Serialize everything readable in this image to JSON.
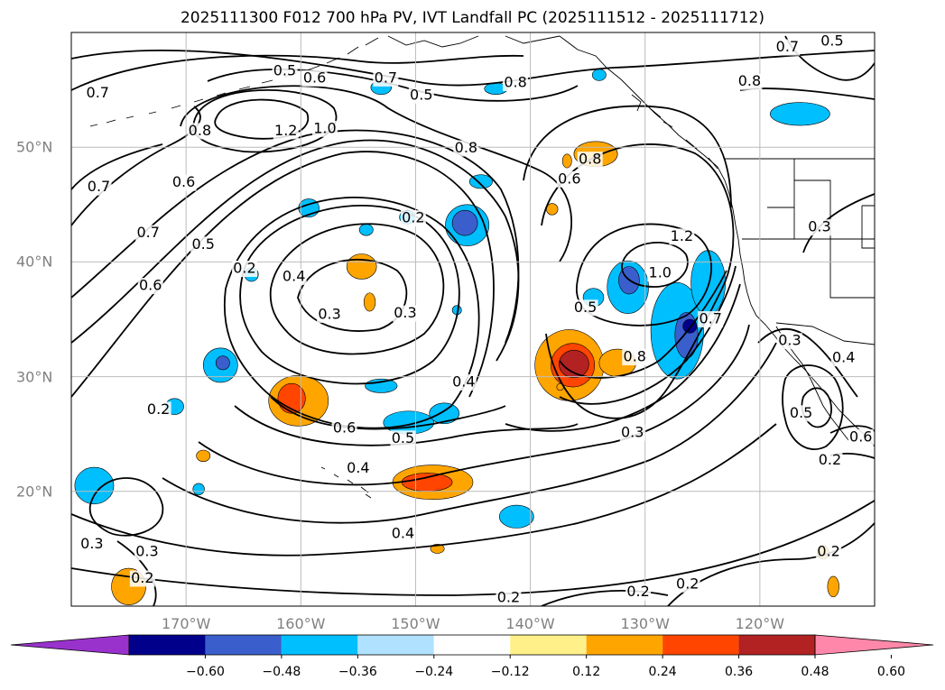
{
  "title": "2025111300 F012 700 hPa PV, IVT Landfall PC (2025111512 - 2025111712)",
  "map": {
    "lon_range": [
      -180,
      -110
    ],
    "lat_range": [
      10,
      60
    ],
    "grid": true,
    "longitude_labels": [
      {
        "lon": -170,
        "label": "170°W"
      },
      {
        "lon": -160,
        "label": "160°W"
      },
      {
        "lon": -150,
        "label": "150°W"
      },
      {
        "lon": -140,
        "label": "140°W"
      },
      {
        "lon": -130,
        "label": "130°W"
      },
      {
        "lon": -120,
        "label": "120°W"
      }
    ],
    "latitude_labels": [
      {
        "lat": 20,
        "label": "20°N"
      },
      {
        "lat": 30,
        "label": "30°N"
      },
      {
        "lat": 40,
        "label": "40°N"
      },
      {
        "lat": 50,
        "label": "50°N"
      }
    ],
    "contour_labels": [
      "0.2",
      "0.3",
      "0.4",
      "0.5",
      "0.6",
      "0.7",
      "0.8",
      "1.0",
      "1.2"
    ],
    "placed_contour_labels": [
      {
        "text": "0.5",
        "lon": -161.4,
        "lat": 56.6
      },
      {
        "text": "0.6",
        "lon": -158.8,
        "lat": 56.0
      },
      {
        "text": "0.7",
        "lon": -152.6,
        "lat": 56.0
      },
      {
        "text": "0.5",
        "lon": -149.5,
        "lat": 54.5
      },
      {
        "text": "0.8",
        "lon": -141.3,
        "lat": 55.6
      },
      {
        "text": "0.8",
        "lon": -120.9,
        "lat": 55.7
      },
      {
        "text": "0.7",
        "lon": -117.6,
        "lat": 58.7
      },
      {
        "text": "0.5",
        "lon": -113.7,
        "lat": 59.2
      },
      {
        "text": "0.7",
        "lon": -177.7,
        "lat": 54.7
      },
      {
        "text": "1.2",
        "lon": -161.3,
        "lat": 51.4
      },
      {
        "text": "1.0",
        "lon": -157.9,
        "lat": 51.6
      },
      {
        "text": "0.8",
        "lon": -168.8,
        "lat": 51.4
      },
      {
        "text": "0.8",
        "lon": -145.6,
        "lat": 49.9
      },
      {
        "text": "0.6",
        "lon": -170.2,
        "lat": 46.9
      },
      {
        "text": "0.7",
        "lon": -177.6,
        "lat": 46.5
      },
      {
        "text": "0.7",
        "lon": -173.3,
        "lat": 42.5
      },
      {
        "text": "0.5",
        "lon": -168.5,
        "lat": 41.5
      },
      {
        "text": "0.6",
        "lon": -173.1,
        "lat": 37.9
      },
      {
        "text": "0.2",
        "lon": -150.2,
        "lat": 43.8
      },
      {
        "text": "0.2",
        "lon": -164.9,
        "lat": 39.4
      },
      {
        "text": "0.4",
        "lon": -160.6,
        "lat": 38.7
      },
      {
        "text": "0.3",
        "lon": -157.5,
        "lat": 35.4
      },
      {
        "text": "0.3",
        "lon": -150.9,
        "lat": 35.5
      },
      {
        "text": "0.4",
        "lon": -145.8,
        "lat": 29.5
      },
      {
        "text": "0.6",
        "lon": -136.6,
        "lat": 47.2
      },
      {
        "text": "0.8",
        "lon": -134.8,
        "lat": 48.9
      },
      {
        "text": "1.2",
        "lon": -126.8,
        "lat": 42.2
      },
      {
        "text": "1.0",
        "lon": -128.7,
        "lat": 39.0
      },
      {
        "text": "0.5",
        "lon": -135.2,
        "lat": 36.0
      },
      {
        "text": "0.8",
        "lon": -130.9,
        "lat": 31.7
      },
      {
        "text": "0.7",
        "lon": -124.3,
        "lat": 35.0
      },
      {
        "text": "0.3",
        "lon": -131.1,
        "lat": 25.1
      },
      {
        "text": "0.3",
        "lon": -114.8,
        "lat": 43.0
      },
      {
        "text": "0.3",
        "lon": -117.4,
        "lat": 33.1
      },
      {
        "text": "0.4",
        "lon": -112.7,
        "lat": 31.6
      },
      {
        "text": "0.5",
        "lon": -116.4,
        "lat": 26.8
      },
      {
        "text": "0.6",
        "lon": -111.2,
        "lat": 24.7
      },
      {
        "text": "0.2",
        "lon": -113.9,
        "lat": 22.7
      },
      {
        "text": "0.2",
        "lon": -172.4,
        "lat": 27.1
      },
      {
        "text": "0.6",
        "lon": -156.2,
        "lat": 25.5
      },
      {
        "text": "0.5",
        "lon": -151.1,
        "lat": 24.6
      },
      {
        "text": "0.4",
        "lon": -155.0,
        "lat": 22.0
      },
      {
        "text": "0.4",
        "lon": -151.1,
        "lat": 16.3
      },
      {
        "text": "0.3",
        "lon": -178.2,
        "lat": 15.4
      },
      {
        "text": "0.3",
        "lon": -173.4,
        "lat": 14.7
      },
      {
        "text": "0.2",
        "lon": -173.8,
        "lat": 12.4
      },
      {
        "text": "0.2",
        "lon": -141.9,
        "lat": 10.7
      },
      {
        "text": "0.2",
        "lon": -130.6,
        "lat": 11.2
      },
      {
        "text": "0.2",
        "lon": -126.3,
        "lat": 11.9
      },
      {
        "text": "0.2",
        "lon": -114.0,
        "lat": 14.7
      }
    ],
    "pv_contour_color": "#000000",
    "coastline_color": "#000000",
    "gridline_color": "#bbbbbb",
    "shaded_regions": [
      {
        "level": "neg1",
        "cx": -178.0,
        "cy": 20.5,
        "rx": 1.7,
        "ry": 1.6
      },
      {
        "level": "neg1",
        "cx": -168.9,
        "cy": 20.2,
        "rx": 0.5,
        "ry": 0.5
      },
      {
        "level": "neg1",
        "cx": -167.0,
        "cy": 31.0,
        "rx": 1.5,
        "ry": 1.5
      },
      {
        "level": "neg2",
        "cx": -166.8,
        "cy": 31.2,
        "rx": 0.6,
        "ry": 0.6
      },
      {
        "level": "neg1",
        "cx": -171.0,
        "cy": 27.4,
        "rx": 0.8,
        "ry": 0.7
      },
      {
        "level": "neg1",
        "cx": -164.3,
        "cy": 38.9,
        "rx": 0.6,
        "ry": 0.6
      },
      {
        "level": "neg1",
        "cx": -159.3,
        "cy": 44.7,
        "rx": 0.9,
        "ry": 0.8
      },
      {
        "level": "neg1",
        "cx": -144.3,
        "cy": 47.0,
        "rx": 1.0,
        "ry": 0.6
      },
      {
        "level": "neg1",
        "cx": -154.3,
        "cy": 42.8,
        "rx": 0.6,
        "ry": 0.5
      },
      {
        "level": "neg1",
        "cx": -150.7,
        "cy": 43.9,
        "rx": 0.7,
        "ry": 0.6
      },
      {
        "level": "neg1",
        "cx": -145.5,
        "cy": 43.2,
        "rx": 1.9,
        "ry": 1.8
      },
      {
        "level": "neg2",
        "cx": -145.7,
        "cy": 43.4,
        "rx": 1.1,
        "ry": 1.1
      },
      {
        "level": "neg1",
        "cx": -141.2,
        "cy": 17.8,
        "rx": 1.5,
        "ry": 1.0
      },
      {
        "level": "neg1",
        "cx": -146.4,
        "cy": 35.8,
        "rx": 0.4,
        "ry": 0.4
      },
      {
        "level": "neg1",
        "cx": -150.6,
        "cy": 26.0,
        "rx": 2.2,
        "ry": 1.0
      },
      {
        "level": "neg1",
        "cx": -147.5,
        "cy": 26.8,
        "rx": 1.3,
        "ry": 0.9
      },
      {
        "level": "neg1",
        "cx": -153.0,
        "cy": 29.2,
        "rx": 1.4,
        "ry": 0.6
      },
      {
        "level": "neg1",
        "cx": -127.2,
        "cy": 34.0,
        "rx": 2.3,
        "ry": 4.2
      },
      {
        "level": "neg1",
        "cx": -124.5,
        "cy": 38.2,
        "rx": 1.5,
        "ry": 2.8
      },
      {
        "level": "neg2",
        "cx": -126.4,
        "cy": 33.6,
        "rx": 1.0,
        "ry": 2.0
      },
      {
        "level": "neg3",
        "cx": -126.1,
        "cy": 34.4,
        "rx": 0.6,
        "ry": 0.6
      },
      {
        "level": "neg1",
        "cx": -131.5,
        "cy": 37.8,
        "rx": 1.8,
        "ry": 2.3
      },
      {
        "level": "neg2",
        "cx": -131.4,
        "cy": 38.4,
        "rx": 0.9,
        "ry": 1.2
      },
      {
        "level": "neg1",
        "cx": -134.5,
        "cy": 36.9,
        "rx": 0.9,
        "ry": 0.8
      },
      {
        "level": "neg1",
        "cx": -116.5,
        "cy": 52.9,
        "rx": 2.6,
        "ry": 1.0
      },
      {
        "level": "neg1",
        "cx": -143.0,
        "cy": 55.1,
        "rx": 1.0,
        "ry": 0.5
      },
      {
        "level": "neg1",
        "cx": -134.0,
        "cy": 56.3,
        "rx": 0.6,
        "ry": 0.5
      },
      {
        "level": "neg1",
        "cx": -153.0,
        "cy": 55.2,
        "rx": 0.9,
        "ry": 0.6
      },
      {
        "level": "pos1",
        "cx": -160.2,
        "cy": 27.9,
        "rx": 2.6,
        "ry": 2.2
      },
      {
        "level": "pos2",
        "cx": -160.8,
        "cy": 28.1,
        "rx": 1.2,
        "ry": 1.3
      },
      {
        "level": "pos1",
        "cx": -148.5,
        "cy": 20.8,
        "rx": 3.5,
        "ry": 1.5
      },
      {
        "level": "pos2",
        "cx": -149.0,
        "cy": 20.8,
        "rx": 2.2,
        "ry": 0.8
      },
      {
        "level": "pos1",
        "cx": -136.6,
        "cy": 31.0,
        "rx": 3.0,
        "ry": 3.1
      },
      {
        "level": "pos2",
        "cx": -136.3,
        "cy": 31.0,
        "rx": 1.9,
        "ry": 1.9
      },
      {
        "level": "pos3",
        "cx": -136.2,
        "cy": 31.1,
        "rx": 1.3,
        "ry": 1.2
      },
      {
        "level": "pos1",
        "cx": -132.4,
        "cy": 31.2,
        "rx": 1.6,
        "ry": 1.2
      },
      {
        "level": "pos1",
        "cx": -154.7,
        "cy": 39.6,
        "rx": 1.3,
        "ry": 1.1
      },
      {
        "level": "pos1",
        "cx": -154.0,
        "cy": 36.5,
        "rx": 0.5,
        "ry": 0.8
      },
      {
        "level": "pos1",
        "cx": -134.3,
        "cy": 49.4,
        "rx": 1.9,
        "ry": 1.1
      },
      {
        "level": "pos1",
        "cx": -136.8,
        "cy": 48.8,
        "rx": 0.4,
        "ry": 0.6
      },
      {
        "level": "pos1",
        "cx": -138.1,
        "cy": 44.6,
        "rx": 0.5,
        "ry": 0.5
      },
      {
        "level": "pos1",
        "cx": -175.0,
        "cy": 11.7,
        "rx": 1.5,
        "ry": 1.6
      },
      {
        "level": "pos1",
        "cx": -168.5,
        "cy": 23.1,
        "rx": 0.6,
        "ry": 0.5
      },
      {
        "level": "pos1",
        "cx": -148.1,
        "cy": 15.0,
        "rx": 0.6,
        "ry": 0.4
      },
      {
        "level": "pos1",
        "cx": -137.4,
        "cy": 29.1,
        "rx": 0.3,
        "ry": 0.3
      },
      {
        "level": "pos1",
        "cx": -113.6,
        "cy": 11.7,
        "rx": 0.5,
        "ry": 0.9
      },
      {
        "level": "pos1",
        "cx": -114.5,
        "cy": 14.7,
        "rx": 0.5,
        "ry": 0.6
      }
    ]
  },
  "colorbar": {
    "colors": [
      "#9932cc",
      "#00008b",
      "#3a5fcd",
      "#00bfff",
      "#b0e2ff",
      "#ffffff",
      "#fff08a",
      "#ffa500",
      "#ff4500",
      "#b22222",
      "#ff88aa"
    ],
    "levels": [
      -0.6,
      -0.48,
      -0.36,
      -0.24,
      -0.12,
      0.12,
      0.24,
      0.36,
      0.48,
      0.6
    ],
    "labels": [
      "−0.60",
      "−0.48",
      "−0.36",
      "−0.24",
      "−0.12",
      "0.12",
      "0.24",
      "0.36",
      "0.48",
      "0.60"
    ]
  }
}
